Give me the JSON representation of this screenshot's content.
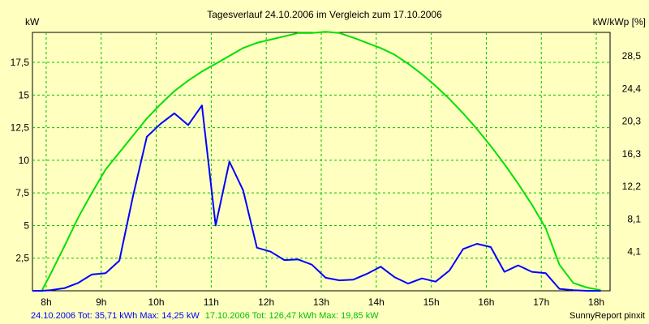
{
  "chart_data": {
    "type": "line",
    "title": "Tagesverlauf 24.10.2006 im Vergleich zum 17.10.2006",
    "ylabel": "kW",
    "ylabel_right": "kW/kWp [%]",
    "xlim": [
      7.75,
      18.25
    ],
    "ylim": [
      0,
      19.8
    ],
    "x_ticks": [
      {
        "v": 8,
        "label": "8h"
      },
      {
        "v": 9,
        "label": "9h"
      },
      {
        "v": 10,
        "label": "10h"
      },
      {
        "v": 11,
        "label": "11h"
      },
      {
        "v": 12,
        "label": "12h"
      },
      {
        "v": 13,
        "label": "13h"
      },
      {
        "v": 14,
        "label": "14h"
      },
      {
        "v": 15,
        "label": "15h"
      },
      {
        "v": 16,
        "label": "16h"
      },
      {
        "v": 17,
        "label": "17h"
      },
      {
        "v": 18,
        "label": "18h"
      }
    ],
    "y_ticks": [
      {
        "v": 2.5,
        "label": "2,5"
      },
      {
        "v": 5,
        "label": "5"
      },
      {
        "v": 7.5,
        "label": "7,5"
      },
      {
        "v": 10,
        "label": "10"
      },
      {
        "v": 12.5,
        "label": "12,5"
      },
      {
        "v": 15,
        "label": "15"
      },
      {
        "v": 17.5,
        "label": "17,5"
      }
    ],
    "y_right_ticks": [
      {
        "v": 2.5,
        "label": "4,1"
      },
      {
        "v": 5,
        "label": "8,1"
      },
      {
        "v": 7.5,
        "label": "12,2"
      },
      {
        "v": 10,
        "label": "16,3"
      },
      {
        "v": 12.5,
        "label": "20,3"
      },
      {
        "v": 15,
        "label": "24,4"
      },
      {
        "v": 17.5,
        "label": "28,5"
      }
    ],
    "grid": true,
    "series": [
      {
        "name": "24.10.2006",
        "color": "#0000ff",
        "x": [
          7.75,
          7.92,
          8.08,
          8.33,
          8.58,
          8.83,
          9.08,
          9.33,
          9.58,
          9.83,
          10.08,
          10.33,
          10.58,
          10.83,
          11.08,
          11.33,
          11.58,
          11.83,
          12.08,
          12.33,
          12.58,
          12.83,
          13.08,
          13.33,
          13.58,
          13.83,
          14.08,
          14.33,
          14.58,
          14.83,
          15.08,
          15.33,
          15.58,
          15.83,
          16.08,
          16.33,
          16.58,
          16.83,
          17.08,
          17.33,
          17.58,
          17.83,
          18.08
        ],
        "y": [
          0,
          0,
          0.05,
          0.2,
          0.6,
          1.25,
          1.35,
          2.3,
          7.3,
          11.8,
          12.8,
          13.6,
          12.7,
          14.2,
          5.0,
          9.9,
          7.7,
          3.3,
          3.0,
          2.35,
          2.4,
          2.0,
          1.0,
          0.8,
          0.85,
          1.3,
          1.85,
          1.05,
          0.55,
          0.95,
          0.7,
          1.55,
          3.2,
          3.6,
          3.35,
          1.45,
          1.95,
          1.45,
          1.35,
          0.15,
          0.05,
          0,
          0
        ]
      },
      {
        "name": "17.10.2006",
        "color": "#00e000",
        "x": [
          7.75,
          7.92,
          8.08,
          8.33,
          8.58,
          8.83,
          9.08,
          9.33,
          9.58,
          9.83,
          10.08,
          10.33,
          10.58,
          10.83,
          11.08,
          11.33,
          11.58,
          11.83,
          12.08,
          12.33,
          12.58,
          12.83,
          13.08,
          13.33,
          13.58,
          13.83,
          14.08,
          14.33,
          14.58,
          14.83,
          15.08,
          15.33,
          15.58,
          15.83,
          16.08,
          16.33,
          16.58,
          16.83,
          17.08,
          17.33,
          17.58,
          17.83,
          18.08
        ],
        "y": [
          0,
          0,
          1.3,
          3.4,
          5.6,
          7.5,
          9.3,
          10.6,
          11.9,
          13.2,
          14.3,
          15.3,
          16.1,
          16.8,
          17.4,
          18.0,
          18.6,
          19.0,
          19.25,
          19.5,
          19.75,
          19.75,
          19.85,
          19.75,
          19.4,
          19.0,
          18.6,
          18.1,
          17.4,
          16.6,
          15.7,
          14.7,
          13.6,
          12.4,
          11.1,
          9.7,
          8.2,
          6.6,
          4.8,
          2.0,
          0.6,
          0.25,
          0.05
        ]
      }
    ]
  },
  "footer": {
    "left_blue": "24.10.2006 Tot: 35,71 kWh Max: 14,25 kW",
    "left_green": "17.10.2006 Tot: 126,47 kWh Max: 19,85 kW",
    "right": "SunnyReport pinxit"
  },
  "colors": {
    "background": "#ffffc0",
    "grid": "#00c000",
    "footer_blue": "#0000ff",
    "footer_green": "#00c000"
  }
}
